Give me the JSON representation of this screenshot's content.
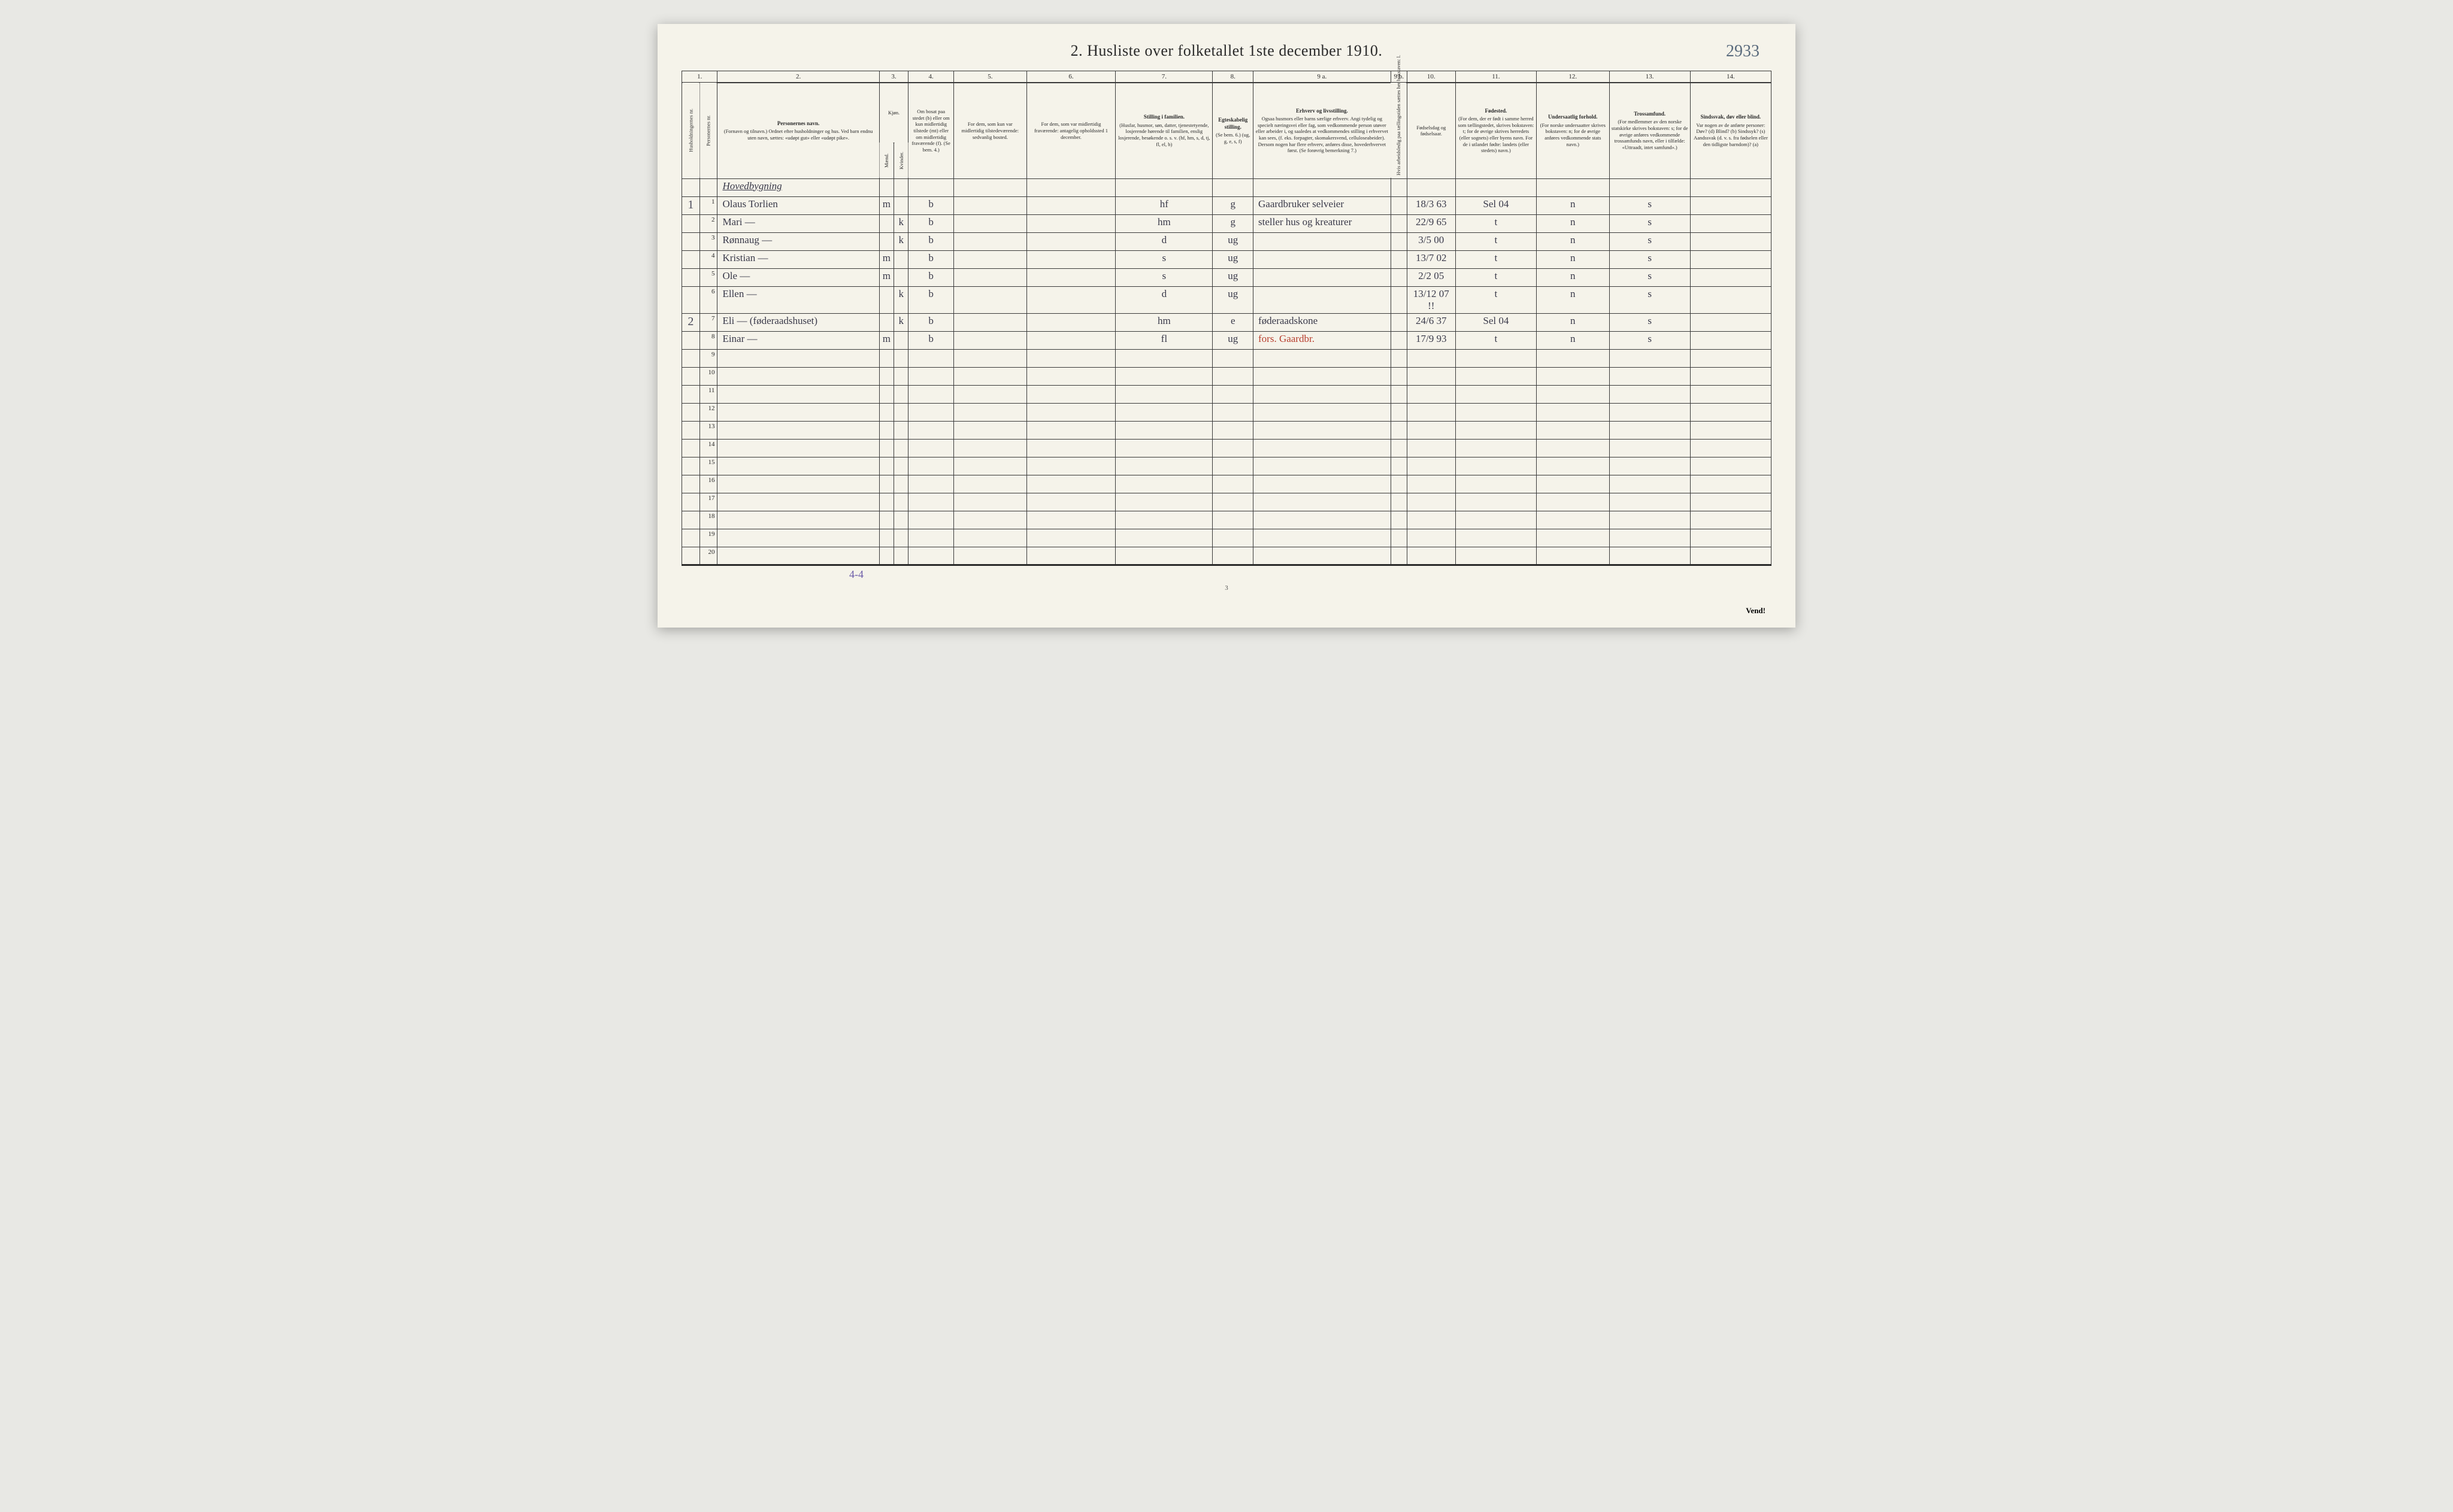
{
  "handPageNumber": "2933",
  "title": "2. Husliste over folketallet 1ste december 1910.",
  "columns": {
    "numbers": [
      "1.",
      "2.",
      "3.",
      "4.",
      "5.",
      "6.",
      "7.",
      "8.",
      "9 a.",
      "9 b.",
      "10.",
      "11.",
      "12.",
      "13.",
      "14."
    ],
    "widths": [
      22,
      22,
      200,
      18,
      18,
      56,
      90,
      110,
      120,
      50,
      170,
      20,
      60,
      100,
      90,
      100,
      100
    ]
  },
  "headers": {
    "c1": "Husholdningernes nr.",
    "c1b": "Personernes nr.",
    "c2_title": "Personernes navn.",
    "c2_sub": "(Fornavn og tilnavn.)\nOrdnet efter husholdninger og hus.\nVed barn endnu uten navn, sættes: «udøpt gut» eller «udøpt pike».",
    "c3_title": "Kjøn.",
    "c3_m": "Mænd.",
    "c3_k": "Kvinder.",
    "c3_mk": "m. k.",
    "c4": "Om bosat paa stedet (b) eller om kun midlertidig tilstede (mt) eller om midlertidig fraværende (f).\n(Se bem. 4.)",
    "c5": "For dem, som kun var midlertidig tilstedeværende:\nsedvanlig bosted.",
    "c6": "For dem, som var midlertidig fraværende:\nantagelig opholdssted 1 december.",
    "c7_title": "Stilling i familien.",
    "c7_sub": "(Husfar, husmor, søn, datter, tjenestetyende, losjerende hørende til familien, enslig losjerende, besøkende o. s. v.\n(hf, hm, s, d, tj, fl, el, b)",
    "c8_title": "Egteskabelig stilling.",
    "c8_sub": "(Se bem. 6.)\n(ug, g, e, s, f)",
    "c9a_title": "Erhverv og livsstilling.",
    "c9a_sub": "Ogsaa husmors eller barns særlige erhverv.\nAngi tydelig og specielt næringsvei eller fag, som vedkommende person utøver eller arbeider i, og saaledes at vedkommendes stilling i erhvervet kan sees, (f. eks. forpagter, skomakersvend, celluloseabeider). Dersom nogen har flere erhverv, anføres disse, hovederhvervet først.\n(Se forøvrig bemerkning 7.)",
    "c9b": "Hvis arbeidsledig paa tællingstiden sættes her bokstaven: l.",
    "c10": "Fødselsdag og fødselsaar.",
    "c11_title": "Fødested.",
    "c11_sub": "(For dem, der er født i samme herred som tællingstedet, skrives bokstaven: t; for de øvrige skrives herredets (eller sognets) eller byens navn. For de i utlandet fødte: landets (eller stedets) navn.)",
    "c12_title": "Undersaatlig forhold.",
    "c12_sub": "(For norske undersaatter skrives bokstaven: n; for de øvrige anføres vedkommende stats navn.)",
    "c13_title": "Trossamfund.",
    "c13_sub": "(For medlemmer av den norske statskirke skrives bokstaven: s; for de øvrige anføres vedkommende trossamfunds navn, eller i tilfælde: «Uttraadt, intet samfund».)",
    "c14_title": "Sindssvak, døv eller blind.",
    "c14_sub": "Var nogen av de anførte personer:\nDøv? (d)\nBlind? (b)\nSindssyk? (s)\nAandssvak (d. v. s. fra fødselen eller den tidligste barndom)? (a)"
  },
  "buildingHeader": "Hovedbygning",
  "rows": [
    {
      "house": "1",
      "num": "1",
      "name": "Olaus Torlien",
      "sex": "m",
      "res": "b",
      "pos": "hf",
      "mar": "g",
      "occ": "Gaardbruker selveier",
      "dob": "18/3 63",
      "birthplace": "Sel 04",
      "nat": "n",
      "rel": "s"
    },
    {
      "house": "",
      "num": "2",
      "name": "Mari —",
      "sex": "k",
      "res": "b",
      "pos": "hm",
      "mar": "g",
      "occ": "steller hus og kreaturer",
      "dob": "22/9 65",
      "birthplace": "t",
      "nat": "n",
      "rel": "s"
    },
    {
      "house": "",
      "num": "3",
      "name": "Rønnaug —",
      "sex": "k",
      "res": "b",
      "pos": "d",
      "mar": "ug",
      "occ": "",
      "dob": "3/5 00",
      "birthplace": "t",
      "nat": "n",
      "rel": "s"
    },
    {
      "house": "",
      "num": "4",
      "name": "Kristian —",
      "sex": "m",
      "res": "b",
      "pos": "s",
      "mar": "ug",
      "occ": "",
      "dob": "13/7 02",
      "birthplace": "t",
      "nat": "n",
      "rel": "s"
    },
    {
      "house": "",
      "num": "5",
      "name": "Ole —",
      "sex": "m",
      "res": "b",
      "pos": "s",
      "mar": "ug",
      "occ": "",
      "dob": "2/2 05",
      "birthplace": "t",
      "nat": "n",
      "rel": "s"
    },
    {
      "house": "",
      "num": "6",
      "name": "Ellen —",
      "sex": "k",
      "res": "b",
      "pos": "d",
      "mar": "ug",
      "occ": "",
      "dob": "13/12 07 !!",
      "birthplace": "t",
      "nat": "n",
      "rel": "s"
    },
    {
      "house": "2",
      "num": "7",
      "name": "Eli — (føderaadshuset)",
      "sex": "k",
      "res": "b",
      "pos": "hm",
      "mar": "e",
      "occ": "føderaadskone",
      "dob": "24/6 37",
      "birthplace": "Sel 04",
      "nat": "n",
      "rel": "s"
    },
    {
      "house": "",
      "num": "8",
      "name": "Einar —",
      "sex": "m",
      "res": "b",
      "pos": "fl",
      "mar": "ug",
      "occ": "fors. Gaardbr.",
      "occRed": true,
      "dob": "17/9 93",
      "birthplace": "t",
      "nat": "n",
      "rel": "s"
    }
  ],
  "emptyRows": 12,
  "footerNote": "4-4",
  "pageFootNum": "3",
  "vend": "Vend!"
}
